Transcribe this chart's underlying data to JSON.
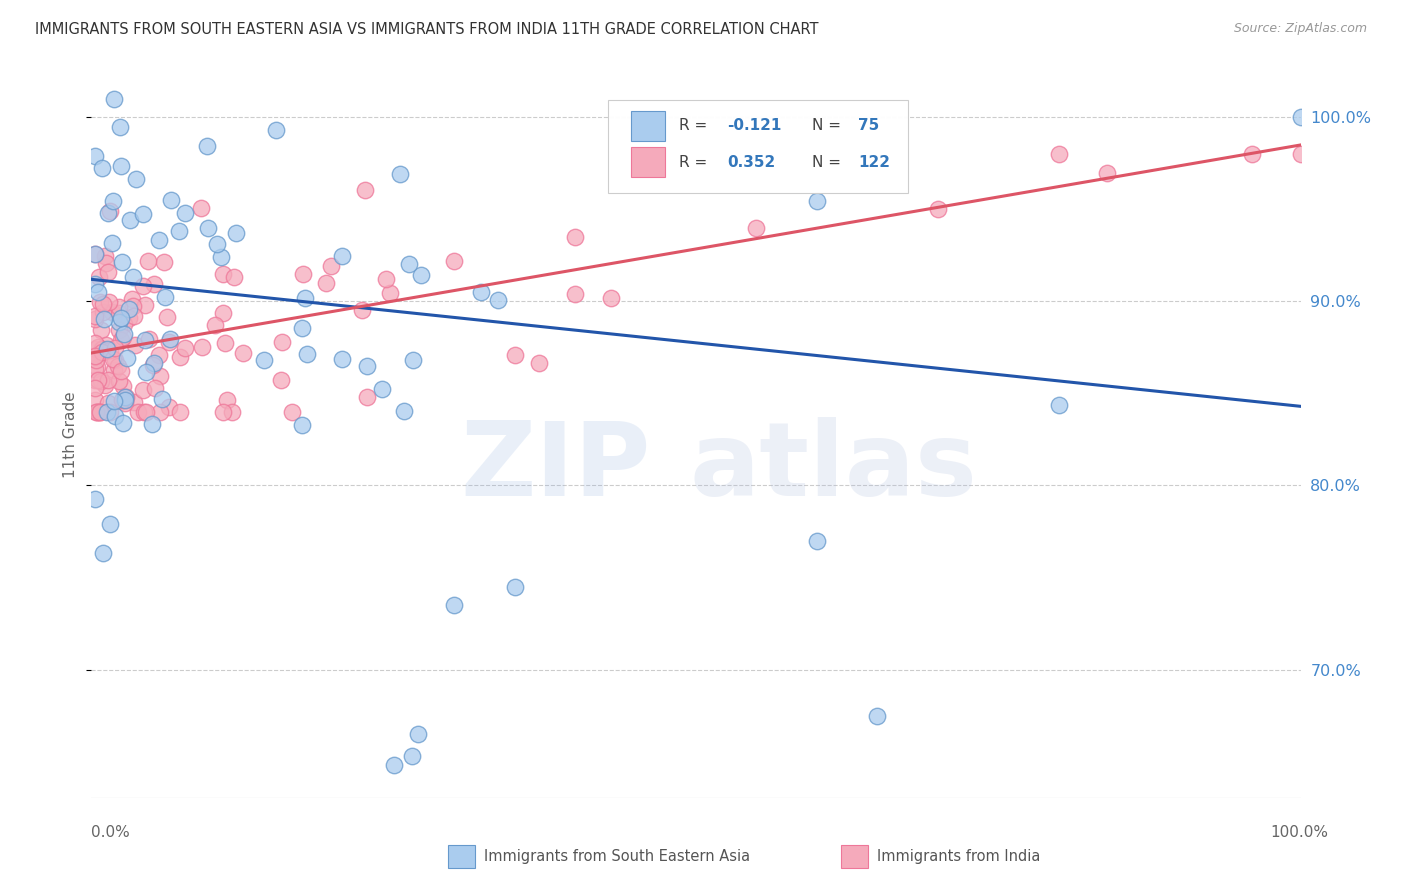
{
  "title": "IMMIGRANTS FROM SOUTH EASTERN ASIA VS IMMIGRANTS FROM INDIA 11TH GRADE CORRELATION CHART",
  "source_text": "Source: ZipAtlas.com",
  "ylabel": "11th Grade",
  "blue_R": -0.121,
  "blue_N": 75,
  "pink_R": 0.352,
  "pink_N": 122,
  "blue_fill_color": "#aaccee",
  "pink_fill_color": "#f5aabb",
  "blue_edge_color": "#6699cc",
  "pink_edge_color": "#ee7799",
  "blue_line_color": "#2255aa",
  "pink_line_color": "#dd5566",
  "right_axis_color": "#4488cc",
  "legend_val_color": "#3377bb",
  "title_color": "#333333",
  "grid_color": "#cccccc",
  "watermark_zip_color": "#88aadd",
  "watermark_atlas_color": "#aabbdd",
  "xmin": 0.0,
  "xmax": 1.0,
  "ymin": 0.63,
  "ymax": 1.025,
  "ytick_values": [
    0.7,
    0.8,
    0.9,
    1.0
  ],
  "ytick_labels": [
    "70.0%",
    "80.0%",
    "90.0%",
    "100.0%"
  ],
  "blue_line_x0": 0.0,
  "blue_line_x1": 1.0,
  "blue_line_y0": 0.912,
  "blue_line_y1": 0.843,
  "pink_line_x0": 0.0,
  "pink_line_x1": 1.0,
  "pink_line_y0": 0.872,
  "pink_line_y1": 0.985
}
